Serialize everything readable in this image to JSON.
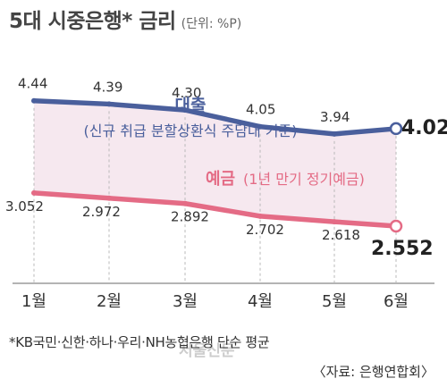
{
  "header": {
    "title": "5대 시중은행* 금리",
    "unit": "(단위: %P)"
  },
  "chart_data": {
    "type": "line",
    "categories": [
      "1월",
      "2월",
      "3월",
      "4월",
      "5월",
      "6월"
    ],
    "series": [
      {
        "name": "대출",
        "subtitle": "(신규 취급 분할상환식 주담대 기준)",
        "values": [
          4.44,
          4.39,
          4.3,
          4.05,
          3.94,
          4.02
        ],
        "labels": [
          "4.44",
          "4.39",
          "4.30",
          "4.05",
          "3.94",
          "4.02"
        ],
        "color": "#4a5f9c"
      },
      {
        "name": "예금",
        "subtitle": "(1년 만기 정기예금)",
        "values": [
          3.052,
          2.972,
          2.892,
          2.702,
          2.618,
          2.552
        ],
        "labels": [
          "3.052",
          "2.972",
          "2.892",
          "2.702",
          "2.618",
          "2.552"
        ],
        "color": "#e46b85"
      }
    ],
    "fill_color": "#f6e8ef"
  },
  "footer": {
    "note": "*KB국민·신한·하나·우리·NH농협은행 단순 평균",
    "source": "〈자료: 은행연합회〉",
    "watermark": "서울신문"
  }
}
